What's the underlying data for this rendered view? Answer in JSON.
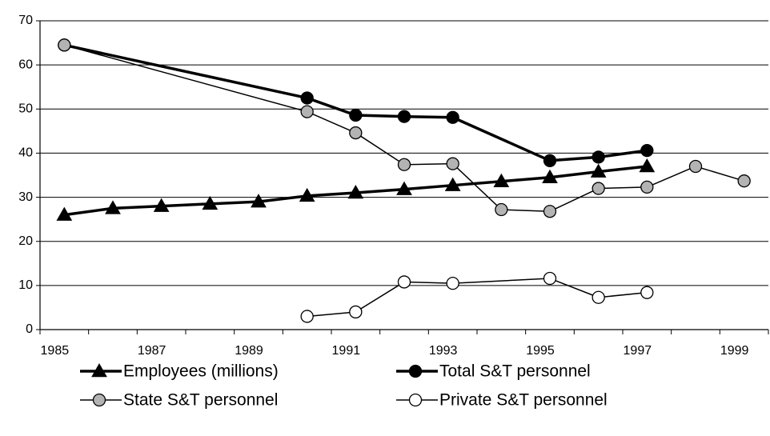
{
  "chart_data": {
    "type": "line",
    "xlim": [
      1984.5,
      1999.5
    ],
    "xticks": [
      1985,
      1987,
      1989,
      1991,
      1993,
      1995,
      1997,
      1999
    ],
    "ylim": [
      0,
      70
    ],
    "yticks": [
      0,
      10,
      20,
      30,
      40,
      50,
      60,
      70
    ],
    "grid": true,
    "legend": "bottom",
    "series": [
      {
        "name": "Employees (millions)",
        "color": "#000000",
        "marker": "triangle",
        "marker_fill": "#000000",
        "line_width": 3.5,
        "x": [
          1985,
          1986,
          1987,
          1988,
          1989,
          1990,
          1991,
          1992,
          1993,
          1994,
          1995,
          1996,
          1997
        ],
        "values": [
          26,
          27.5,
          28,
          28.5,
          29,
          30.3,
          31,
          31.8,
          32.7,
          33.6,
          34.5,
          35.8,
          37
        ]
      },
      {
        "name": "Total S&T personnel",
        "color": "#000000",
        "marker": "circle",
        "marker_fill": "#000000",
        "line_width": 3.5,
        "x": [
          1985,
          1990,
          1991,
          1992,
          1993,
          1995,
          1996,
          1997
        ],
        "values": [
          64.5,
          52.5,
          48.6,
          48.3,
          48.1,
          38.3,
          39.1,
          40.6
        ]
      },
      {
        "name": "State S&T personnel",
        "color": "#000000",
        "marker": "circle",
        "marker_fill": "#b3b3b3",
        "line_width": 1.5,
        "x": [
          1985,
          1990,
          1991,
          1992,
          1993,
          1994,
          1995,
          1996,
          1997,
          1998,
          1999
        ],
        "values": [
          64.5,
          49.4,
          44.6,
          37.4,
          37.6,
          27.2,
          26.8,
          32,
          32.3,
          37,
          33.7
        ]
      },
      {
        "name": "Private S&T personnel",
        "color": "#000000",
        "marker": "circle",
        "marker_fill": "#ffffff",
        "line_width": 1.5,
        "x": [
          1990,
          1991,
          1992,
          1993,
          1995,
          1996,
          1997
        ],
        "values": [
          3,
          4,
          10.8,
          10.5,
          11.6,
          7.3,
          8.4
        ]
      }
    ]
  }
}
